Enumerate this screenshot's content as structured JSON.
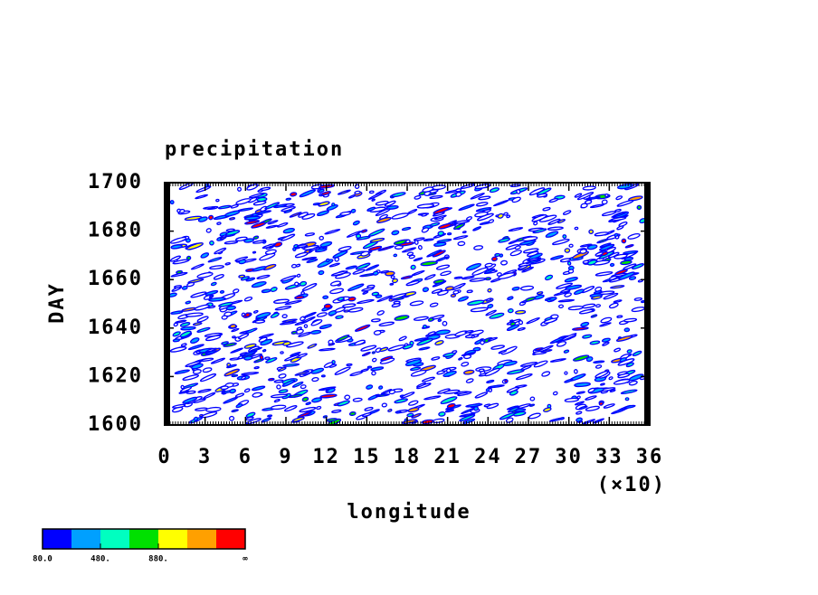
{
  "chart_data": {
    "type": "contour",
    "title": "precipitation",
    "ylabel": "DAY",
    "xlabel": "longitude",
    "x_multiplier": "(×10)",
    "xlim": [
      0,
      36
    ],
    "xticks": [
      0,
      3,
      6,
      9,
      12,
      15,
      18,
      21,
      24,
      27,
      30,
      33,
      36
    ],
    "ylim": [
      1600,
      1700
    ],
    "yticks": [
      1600,
      1620,
      1640,
      1660,
      1680,
      1700
    ],
    "colorbar": {
      "colors": [
        "#0000ff",
        "#00a0ff",
        "#00ffc0",
        "#00e000",
        "#ffff00",
        "#ffa000",
        "#ff0000"
      ],
      "levels": [
        80,
        280,
        480,
        680,
        880,
        1080
      ],
      "ticks": [
        {
          "value": 80,
          "label": "80.0"
        },
        {
          "value": 480,
          "label": "480."
        },
        {
          "value": 880,
          "label": "880."
        }
      ],
      "overflow_label": "∞"
    }
  }
}
